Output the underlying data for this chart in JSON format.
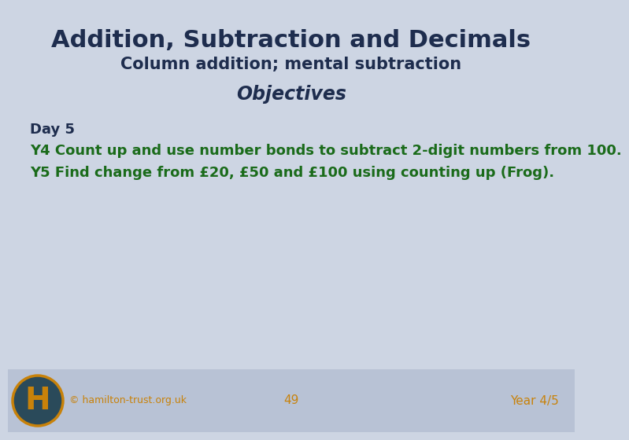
{
  "title": "Addition, Subtraction and Decimals",
  "subtitle": "Column addition; mental subtraction",
  "section_header": "Objectives",
  "day_label": "Day 5",
  "line1": "Y4 Count up and use number bonds to subtract 2-digit numbers from 100.",
  "line2": "Y5 Find change from £20, £50 and £100 using counting up (Frog).",
  "footer_link": "© hamilton-trust.org.uk",
  "footer_center": "49",
  "footer_right": "Year 4/5",
  "bg_color": "#cdd5e3",
  "footer_bg": "#b8c2d5",
  "title_color": "#1e2d4e",
  "subtitle_color": "#1e2d4e",
  "objectives_color": "#1e2d4e",
  "day_color": "#1e2d4e",
  "green_color": "#1a6b1a",
  "footer_text_color": "#c8820a",
  "logo_bg": "#2a4a5a",
  "logo_letter_color": "#c8820a",
  "logo_border_color": "#c8820a"
}
